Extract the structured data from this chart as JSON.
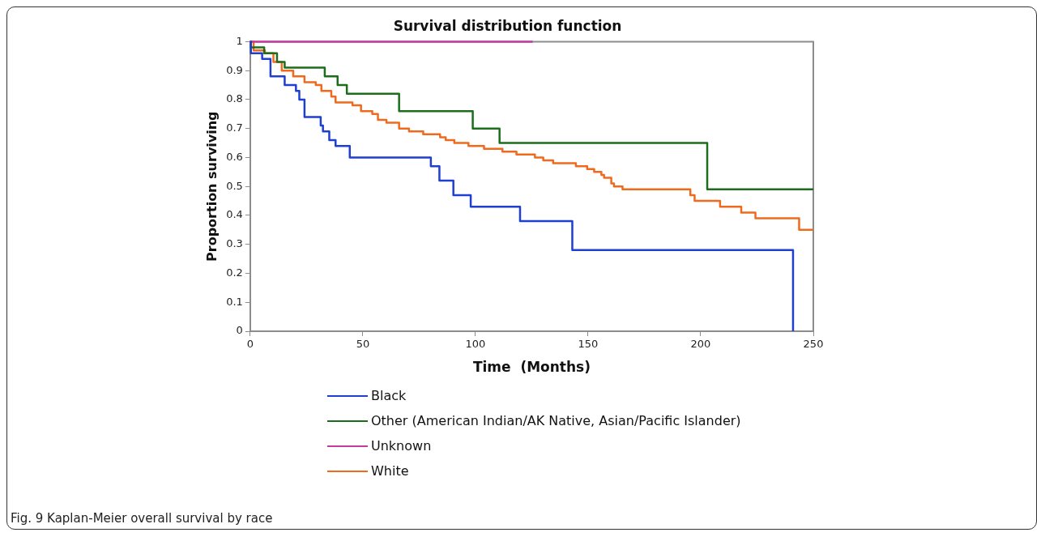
{
  "chart_data": {
    "type": "step",
    "title": "Survival distribution function",
    "xlabel": "Time  (Months)",
    "ylabel": "Proportion surviving",
    "xlim": [
      0,
      250
    ],
    "xticks": [
      0,
      50,
      100,
      150,
      200,
      250
    ],
    "ylim": [
      0,
      1
    ],
    "yticks": [
      0,
      0.1,
      0.2,
      0.3,
      0.4,
      0.5,
      0.6,
      0.7,
      0.8,
      0.9,
      1
    ],
    "legend": "bottom",
    "annotations": [
      "Fig. 9 Kaplan-Meier overall survival by race"
    ],
    "series": [
      {
        "name": "Black",
        "color": "#1f3fd0",
        "x": [
          0,
          0.3,
          5.3,
          9,
          15.3,
          20.3,
          21.8,
          24.1,
          31.3,
          32.3,
          35.1,
          37.9,
          44.2,
          80.2,
          84,
          90.2,
          97.9,
          119.8,
          143,
          241,
          241
        ],
        "values": [
          1,
          0.96,
          0.94,
          0.88,
          0.85,
          0.83,
          0.8,
          0.74,
          0.71,
          0.69,
          0.66,
          0.64,
          0.6,
          0.57,
          0.52,
          0.47,
          0.43,
          0.38,
          0.28,
          0.28,
          0
        ]
      },
      {
        "name": "Other (American Indian/AK Native, Asian/Pacific Islander)",
        "color": "#1c6e1c",
        "x": [
          0,
          0.3,
          6.2,
          11.9,
          15.3,
          33.1,
          38.8,
          42.9,
          66.1,
          98.8,
          110.7,
          202.9,
          250
        ],
        "values": [
          1,
          0.98,
          0.96,
          0.93,
          0.91,
          0.88,
          0.85,
          0.82,
          0.76,
          0.7,
          0.65,
          0.49,
          0.49
        ]
      },
      {
        "name": "Unknown",
        "color": "#c43a9e",
        "x": [
          0,
          125.4
        ],
        "values": [
          1,
          1
        ]
      },
      {
        "name": "White",
        "color": "#f06a1e",
        "x": [
          0,
          1.5,
          6.5,
          10.3,
          14,
          19.1,
          24.1,
          29.1,
          31.6,
          36,
          37.9,
          45.4,
          49.2,
          54.2,
          56.7,
          60.5,
          66.1,
          70.5,
          76.8,
          84.3,
          86.8,
          90.6,
          96.9,
          103.8,
          112,
          118.2,
          122,
          126.4,
          130.1,
          134.5,
          144.6,
          149.6,
          152.7,
          155.9,
          157.1,
          160.3,
          161.5,
          165.3,
          195.4,
          197.3,
          208.6,
          218,
          224.3,
          243.7,
          250
        ],
        "values": [
          1,
          0.97,
          0.96,
          0.93,
          0.9,
          0.88,
          0.86,
          0.85,
          0.83,
          0.81,
          0.79,
          0.78,
          0.76,
          0.75,
          0.73,
          0.72,
          0.7,
          0.69,
          0.68,
          0.67,
          0.66,
          0.65,
          0.64,
          0.63,
          0.62,
          0.61,
          0.61,
          0.6,
          0.59,
          0.58,
          0.57,
          0.56,
          0.55,
          0.54,
          0.53,
          0.51,
          0.5,
          0.49,
          0.47,
          0.45,
          0.43,
          0.41,
          0.39,
          0.35,
          0.35
        ]
      }
    ]
  }
}
